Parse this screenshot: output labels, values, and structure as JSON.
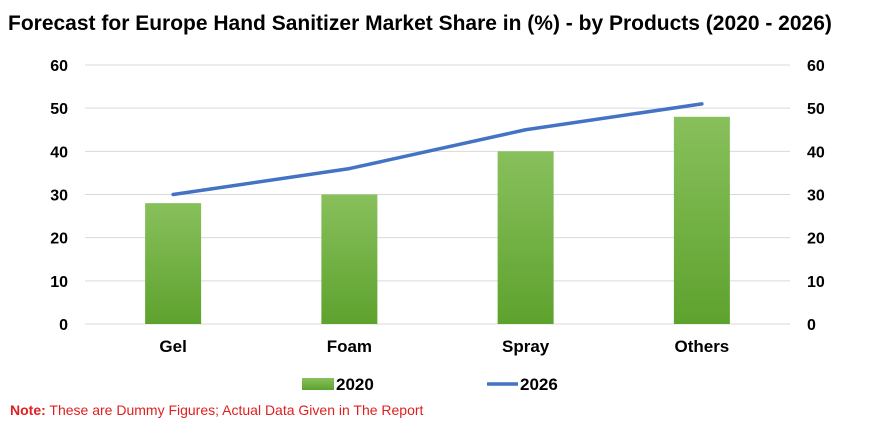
{
  "chart_data": {
    "type": "bar",
    "title": "Forecast for Europe Hand Sanitizer Market Share in (%) - by Products (2020 - 2026)",
    "categories": [
      "Gel",
      "Foam",
      "Spray",
      "Others"
    ],
    "series": [
      {
        "name": "2020",
        "type": "bar",
        "values": [
          28,
          30,
          40,
          48
        ],
        "color": "#6aaa3a"
      },
      {
        "name": "2026",
        "type": "line",
        "values": [
          30,
          36,
          45,
          51
        ],
        "color": "#4472c4"
      }
    ],
    "ylim": [
      0,
      60
    ],
    "yticks": [
      0,
      10,
      20,
      30,
      40,
      50,
      60
    ],
    "secondary_axis": true,
    "grid": true,
    "legend": "bottom"
  },
  "note": {
    "label": "Note:",
    "text": " These are Dummy Figures; Actual Data Given in The Report"
  }
}
